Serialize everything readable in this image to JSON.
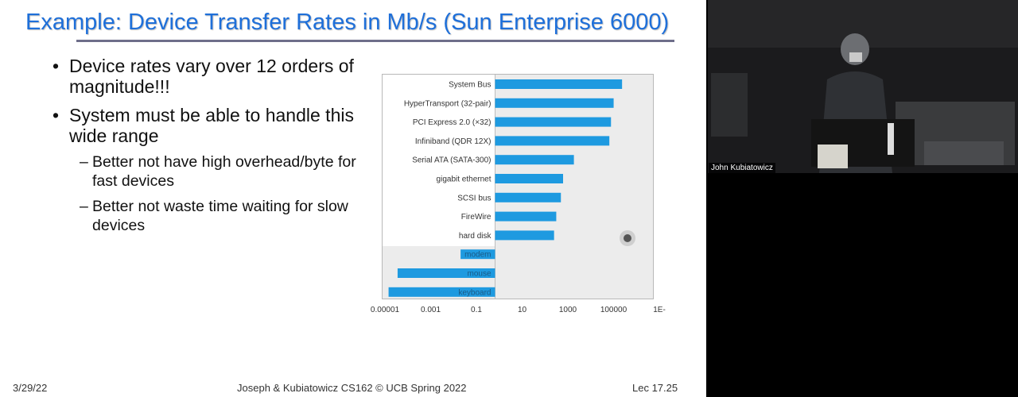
{
  "slide": {
    "title": "Example: Device Transfer Rates in Mb/s (Sun Enterprise 6000)",
    "bullets": [
      {
        "text": "Device rates vary over 12 orders of magnitude!!!",
        "subs": []
      },
      {
        "text": "System must be able to handle this wide range",
        "subs": [
          "Better not have high overhead/byte for fast devices",
          "Better not waste time waiting for slow devices"
        ]
      }
    ],
    "footer": {
      "date": "3/29/22",
      "center": "Joseph & Kubiatowicz CS162 © UCB Spring 2022",
      "lecture": "Lec 17.25"
    }
  },
  "chart_data": {
    "type": "bar",
    "orientation": "horizontal",
    "log_scale": true,
    "categories": [
      "System Bus",
      "HyperTransport (32-pair)",
      "PCI Express 2.0 (×32)",
      "Infiniband (QDR 12X)",
      "Serial ATA (SATA-300)",
      "gigabit ethernet",
      "SCSI bus",
      "FireWire",
      "hard disk",
      "modem",
      "mouse",
      "keyboard"
    ],
    "values": [
      400000,
      170000,
      130000,
      110000,
      3000,
      1000,
      800,
      500,
      400,
      0.03,
      5e-05,
      2e-05
    ],
    "xticks": [
      "0.00001",
      "0.001",
      "0.1",
      "10",
      "1000",
      "100000",
      "1E-"
    ],
    "xlim": [
      1e-05,
      10000000
    ],
    "bar_color": "#1e9ae0",
    "background": "#ececec"
  },
  "video": {
    "speaker": "John Kubiatowicz"
  }
}
